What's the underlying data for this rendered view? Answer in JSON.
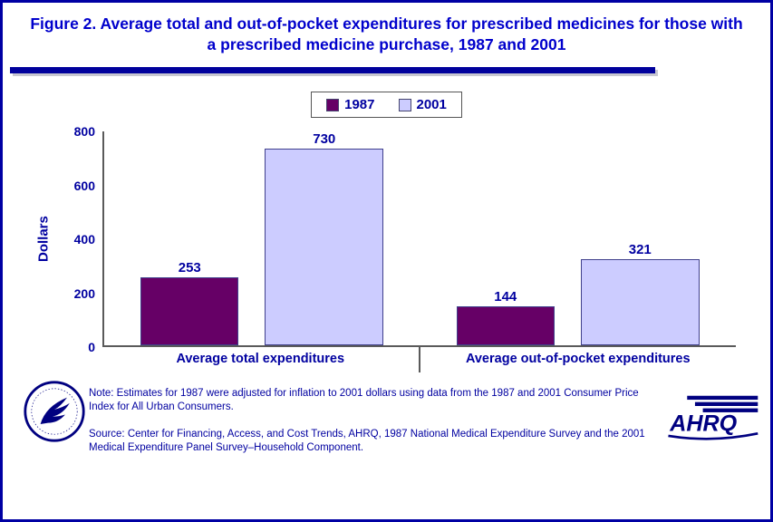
{
  "chart_data": {
    "type": "bar",
    "title": "Figure 2. Average total and out-of-pocket expenditures for prescribed medicines for those with a prescribed medicine purchase, 1987 and 2001",
    "categories": [
      "Average total expenditures",
      "Average out-of-pocket expenditures"
    ],
    "series": [
      {
        "name": "1987",
        "color": "#660066",
        "values": [
          253,
          144
        ]
      },
      {
        "name": "2001",
        "color": "#CCCCFF",
        "values": [
          730,
          321
        ]
      }
    ],
    "xlabel": "",
    "ylabel": "Dollars",
    "ylim": [
      0,
      800
    ],
    "yticks": [
      0,
      200,
      400,
      600,
      800
    ],
    "legend_position": "top-center",
    "grid": false
  },
  "footer": {
    "note": "Note: Estimates for 1987 were adjusted for inflation to 2001 dollars using data from the 1987 and 2001 Consumer Price Index for All Urban Consumers.",
    "source": "Source: Center for Financing, Access, and Cost Trends, AHRQ, 1987 National Medical Expenditure Survey and the 2001 Medical Expenditure Panel Survey–Household Component."
  },
  "logos": {
    "ahrq_text": "AHRQ"
  },
  "colors": {
    "title_text": "#0000CC",
    "body_text": "#0000A0",
    "accent_line": "#00009C",
    "bar_1987": "#660066",
    "bar_2001": "#CCCCFF",
    "page_border": "#0000A3"
  }
}
